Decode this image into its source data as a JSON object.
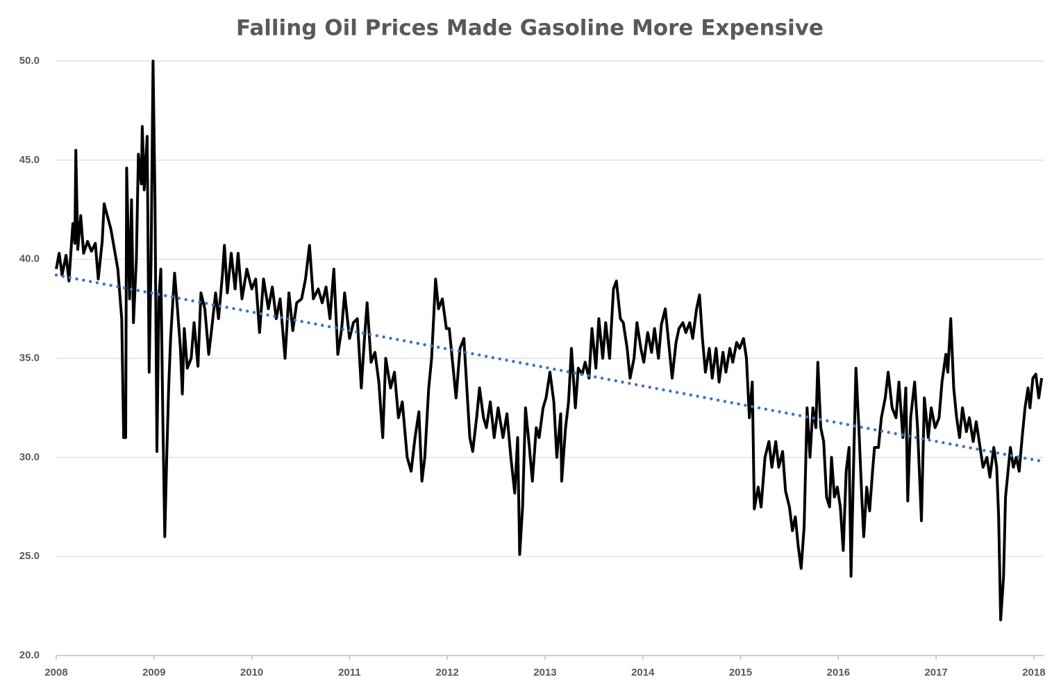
{
  "chart_data": {
    "type": "line",
    "title": "Falling Oil Prices Made Gasoline More Expensive",
    "color": "#000000",
    "x": [
      2008.0,
      2008.03,
      2008.06,
      2008.1,
      2008.13,
      2008.17,
      2008.19,
      2008.2,
      2008.22,
      2008.25,
      2008.28,
      2008.32,
      2008.36,
      2008.4,
      2008.43,
      2008.47,
      2008.49,
      2008.56,
      2008.63,
      2008.67,
      2008.69,
      2008.71,
      2008.72,
      2008.75,
      2008.77,
      2008.79,
      2008.82,
      2008.84,
      2008.87,
      2008.88,
      2008.9,
      2008.93,
      2008.95,
      2008.97,
      2008.99,
      2009.01,
      2009.03,
      2009.05,
      2009.07,
      2009.09,
      2009.11,
      2009.13,
      2009.15,
      2009.17,
      2009.21,
      2009.24,
      2009.27,
      2009.29,
      2009.31,
      2009.34,
      2009.38,
      2009.41,
      2009.45,
      2009.48,
      2009.52,
      2009.56,
      2009.59,
      2009.63,
      2009.66,
      2009.7,
      2009.72,
      2009.75,
      2009.79,
      2009.83,
      2009.86,
      2009.9,
      2009.95,
      2010.0,
      2010.04,
      2010.08,
      2010.12,
      2010.17,
      2010.21,
      2010.25,
      2010.29,
      2010.34,
      2010.38,
      2010.42,
      2010.46,
      2010.51,
      2010.55,
      2010.59,
      2010.63,
      2010.68,
      2010.72,
      2010.76,
      2010.8,
      2010.84,
      2010.88,
      2010.92,
      2010.95,
      2011.0,
      2011.04,
      2011.08,
      2011.12,
      2011.15,
      2011.18,
      2011.22,
      2011.26,
      2011.3,
      2011.34,
      2011.37,
      2011.42,
      2011.46,
      2011.5,
      2011.54,
      2011.59,
      2011.63,
      2011.67,
      2011.71,
      2011.74,
      2011.77,
      2011.81,
      2011.84,
      2011.88,
      2011.91,
      2011.95,
      2011.99,
      2012.02,
      2012.06,
      2012.09,
      2012.13,
      2012.17,
      2012.2,
      2012.23,
      2012.26,
      2012.3,
      2012.33,
      2012.37,
      2012.4,
      2012.44,
      2012.48,
      2012.52,
      2012.57,
      2012.61,
      2012.65,
      2012.69,
      2012.72,
      2012.74,
      2012.77,
      2012.8,
      2012.84,
      2012.87,
      2012.91,
      2012.94,
      2012.98,
      2013.01,
      2013.05,
      2013.09,
      2013.12,
      2013.16,
      2013.17,
      2013.21,
      2013.24,
      2013.27,
      2013.31,
      2013.34,
      2013.38,
      2013.41,
      2013.45,
      2013.48,
      2013.52,
      2013.55,
      2013.59,
      2013.62,
      2013.66,
      2013.7,
      2013.73,
      2013.77,
      2013.8,
      2013.84,
      2013.87,
      2013.91,
      2013.94,
      2013.98,
      2014.01,
      2014.05,
      2014.09,
      2014.12,
      2014.16,
      2014.19,
      2014.23,
      2014.26,
      2014.3,
      2014.34,
      2014.37,
      2014.41,
      2014.44,
      2014.48,
      2014.51,
      2014.55,
      2014.58,
      2014.61,
      2014.64,
      2014.68,
      2014.71,
      2014.75,
      2014.78,
      2014.82,
      2014.85,
      2014.89,
      2014.92,
      2014.96,
      2014.99,
      2015.03,
      2015.06,
      2015.09,
      2015.12,
      2015.14,
      2015.18,
      2015.21,
      2015.25,
      2015.29,
      2015.32,
      2015.36,
      2015.39,
      2015.43,
      2015.46,
      2015.5,
      2015.53,
      2015.56,
      2015.59,
      2015.62,
      2015.65,
      2015.68,
      2015.71,
      2015.74,
      2015.77,
      2015.79,
      2015.82,
      2015.85,
      2015.88,
      2015.91,
      2015.93,
      2015.96,
      2015.99,
      2016.02,
      2016.05,
      2016.08,
      2016.11,
      2016.13,
      2016.16,
      2016.18,
      2016.21,
      2016.24,
      2016.26,
      2016.29,
      2016.32,
      2016.35,
      2016.37,
      2016.41,
      2016.44,
      2016.48,
      2016.51,
      2016.55,
      2016.59,
      2016.62,
      2016.66,
      2016.69,
      2016.71,
      2016.74,
      2016.78,
      2016.81,
      2016.85,
      2016.88,
      2016.92,
      2016.95,
      2016.99,
      2017.03,
      2017.06,
      2017.1,
      2017.12,
      2017.15,
      2017.18,
      2017.21,
      2017.24,
      2017.27,
      2017.31,
      2017.34,
      2017.38,
      2017.41,
      2017.45,
      2017.48,
      2017.52,
      2017.55,
      2017.59,
      2017.62,
      2017.64,
      2017.66,
      2017.69,
      2017.71,
      2017.74,
      2017.76,
      2017.79,
      2017.82,
      2017.85,
      2017.88,
      2017.91,
      2017.94,
      2017.96,
      2017.99,
      2018.02,
      2018.05,
      2018.08
    ],
    "values": [
      39.5,
      40.3,
      39.2,
      40.2,
      38.9,
      41.8,
      40.8,
      45.5,
      40.5,
      42.2,
      40.3,
      40.9,
      40.4,
      40.8,
      39.0,
      40.9,
      42.8,
      41.5,
      39.5,
      37.0,
      31.0,
      31.0,
      44.6,
      38.0,
      43.0,
      36.8,
      40.0,
      45.3,
      43.8,
      46.7,
      43.5,
      46.2,
      34.3,
      40.0,
      50.0,
      43.0,
      30.3,
      38.0,
      39.5,
      32.0,
      26.0,
      30.0,
      33.5,
      36.0,
      39.3,
      37.5,
      35.5,
      33.2,
      36.5,
      34.5,
      35.0,
      36.8,
      34.6,
      38.3,
      37.5,
      35.2,
      36.5,
      38.3,
      37.0,
      39.2,
      40.7,
      38.3,
      40.3,
      38.5,
      40.3,
      38.0,
      39.5,
      38.5,
      39.0,
      36.3,
      39.0,
      37.5,
      38.6,
      37.0,
      38.0,
      35.0,
      38.3,
      36.4,
      37.8,
      38.0,
      39.0,
      40.7,
      38.0,
      38.5,
      37.8,
      38.6,
      37.0,
      39.5,
      35.2,
      36.5,
      38.3,
      36.0,
      36.8,
      37.0,
      33.5,
      35.8,
      37.8,
      34.8,
      35.3,
      33.8,
      31.0,
      35.0,
      33.5,
      34.3,
      32.0,
      32.8,
      30.0,
      29.3,
      31.0,
      32.3,
      28.8,
      30.0,
      33.5,
      35.0,
      39.0,
      37.5,
      38.0,
      36.5,
      36.5,
      34.5,
      33.0,
      35.5,
      36.0,
      33.5,
      31.0,
      30.3,
      32.0,
      33.5,
      32.0,
      31.5,
      32.8,
      31.0,
      32.5,
      31.0,
      32.2,
      30.0,
      28.2,
      31.0,
      25.1,
      27.5,
      32.5,
      30.5,
      28.8,
      31.5,
      31.0,
      32.5,
      33.0,
      34.3,
      32.8,
      30.0,
      32.2,
      28.8,
      31.5,
      32.8,
      35.5,
      32.5,
      34.5,
      34.2,
      34.8,
      34.0,
      36.5,
      34.5,
      37.0,
      35.0,
      36.8,
      35.0,
      38.5,
      38.9,
      37.0,
      36.8,
      35.5,
      34.0,
      35.0,
      36.8,
      35.5,
      34.8,
      36.3,
      35.3,
      36.5,
      35.0,
      36.7,
      37.5,
      36.0,
      34.0,
      35.8,
      36.5,
      36.8,
      36.3,
      36.8,
      36.0,
      37.5,
      38.2,
      36.0,
      34.3,
      35.5,
      34.0,
      35.5,
      33.8,
      35.3,
      34.3,
      35.5,
      34.8,
      35.8,
      35.5,
      36.0,
      35.0,
      32.0,
      33.8,
      27.4,
      28.5,
      27.5,
      30.0,
      30.8,
      29.5,
      30.8,
      29.5,
      30.3,
      28.3,
      27.5,
      26.3,
      27.0,
      25.5,
      24.4,
      26.5,
      32.5,
      30.0,
      32.5,
      31.5,
      34.8,
      31.5,
      30.8,
      28.0,
      27.5,
      30.0,
      28.0,
      28.5,
      27.5,
      25.3,
      29.3,
      30.5,
      24.0,
      30.5,
      34.5,
      31.5,
      28.0,
      26.0,
      28.5,
      27.3,
      29.3,
      30.5,
      30.5,
      32.0,
      33.0,
      34.3,
      32.5,
      32.0,
      33.8,
      31.0,
      33.5,
      27.8,
      32.0,
      33.8,
      31.5,
      26.8,
      33.0,
      31.0,
      32.5,
      31.5,
      32.0,
      33.8,
      35.2,
      34.3,
      37.0,
      33.5,
      32.0,
      31.0,
      32.5,
      31.3,
      32.0,
      30.8,
      31.8,
      30.5,
      29.5,
      30.0,
      29.0,
      30.5,
      29.5,
      27.0,
      21.8,
      24.0,
      28.0,
      29.5,
      30.5,
      29.5,
      30.0,
      29.3,
      31.0,
      32.5,
      33.5,
      32.5,
      34.0,
      34.2,
      33.0,
      34.0
    ],
    "trendline": {
      "x": [
        2008.0,
        2018.08
      ],
      "values": [
        39.2,
        29.8
      ],
      "color": "#4472c4",
      "style": "dotted"
    },
    "xlim": [
      2008.0,
      2018.1
    ],
    "xticks": [
      2008,
      2009,
      2010,
      2011,
      2012,
      2013,
      2014,
      2015,
      2016,
      2017,
      2018
    ],
    "ylim": [
      20,
      50
    ],
    "yticks": [
      {
        "value": 20,
        "label": "20.0"
      },
      {
        "value": 25,
        "label": "25.0"
      },
      {
        "value": 30,
        "label": "30.0"
      },
      {
        "value": 35,
        "label": "35.0"
      },
      {
        "value": 40,
        "label": "40.0"
      },
      {
        "value": 45,
        "label": "45.0"
      },
      {
        "value": 50,
        "label": "50.0"
      }
    ],
    "grid": true
  }
}
